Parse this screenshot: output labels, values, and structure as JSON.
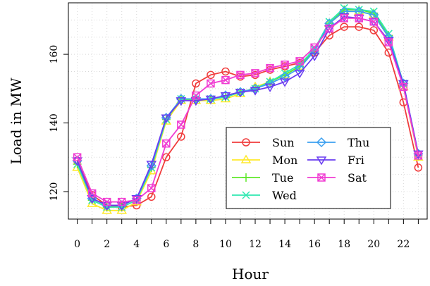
{
  "chart_data": {
    "type": "line",
    "title": "",
    "xlabel": "Hour",
    "ylabel": "Load in MW",
    "x": [
      0,
      1,
      2,
      3,
      4,
      5,
      6,
      7,
      8,
      9,
      10,
      11,
      12,
      13,
      14,
      15,
      16,
      17,
      18,
      19,
      20,
      21,
      22,
      23
    ],
    "x_ticks": [
      0,
      2,
      4,
      6,
      8,
      10,
      12,
      14,
      16,
      18,
      20,
      22
    ],
    "y_ticks": [
      120,
      140,
      160
    ],
    "xlim": [
      -0.6,
      23.6
    ],
    "ylim": [
      112,
      175
    ],
    "grid": true,
    "legend_position": "bottom-right",
    "series": [
      {
        "name": "Sun",
        "color": "#f03c3c",
        "marker": "circle",
        "values": [
          129,
          119,
          116,
          115.5,
          116,
          118.5,
          130,
          136,
          151.5,
          154,
          155,
          153.5,
          154,
          155.5,
          156.5,
          157.5,
          160.5,
          165.5,
          168,
          168,
          167,
          160.5,
          146,
          127
        ]
      },
      {
        "name": "Mon",
        "color": "#ffe92a",
        "marker": "triangle-up",
        "values": [
          127,
          116.5,
          114.5,
          114.5,
          117,
          126,
          140.5,
          146.5,
          146.5,
          146.5,
          147,
          148.5,
          150.5,
          152,
          154,
          156.5,
          161,
          169,
          172.5,
          172.5,
          171.5,
          165,
          150.5,
          130
        ]
      },
      {
        "name": "Tue",
        "color": "#5fe82a",
        "marker": "plus",
        "values": [
          128,
          117.5,
          115.5,
          115.5,
          117.5,
          127,
          141,
          147,
          146.5,
          147,
          147.5,
          149,
          150,
          152,
          154,
          156.5,
          161,
          169,
          173,
          173,
          172,
          165.5,
          151,
          130.5
        ]
      },
      {
        "name": "Wed",
        "color": "#2ee8b0",
        "marker": "x",
        "values": [
          128,
          117.5,
          115.5,
          115.5,
          117.5,
          127,
          141,
          147,
          147,
          147,
          147.5,
          149,
          150,
          152,
          154.5,
          157,
          161.5,
          169.5,
          173.5,
          173,
          172.5,
          166,
          151.5,
          130.5
        ]
      },
      {
        "name": "Thu",
        "color": "#3ca0f0",
        "marker": "diamond",
        "values": [
          129,
          118,
          116,
          116,
          118,
          127.5,
          141.5,
          147,
          147,
          147,
          148,
          149,
          150,
          151.5,
          153.5,
          156,
          161,
          169,
          172.5,
          172.5,
          171.5,
          165,
          151.5,
          131
        ]
      },
      {
        "name": "Fri",
        "color": "#6a3cf0",
        "marker": "triangle-down",
        "values": [
          129,
          118,
          116,
          116,
          118,
          128,
          141.5,
          146.5,
          146.5,
          147,
          148,
          149,
          149.5,
          150.5,
          152,
          154.5,
          159.5,
          167.5,
          171,
          170.5,
          169.5,
          164,
          151.5,
          131
        ]
      },
      {
        "name": "Sat",
        "color": "#f03cd2",
        "marker": "square-x",
        "values": [
          130,
          119.5,
          117,
          117,
          117.5,
          121,
          134,
          139.5,
          148,
          151.5,
          152.5,
          154,
          154.5,
          156,
          157,
          158,
          162,
          167.5,
          170.5,
          170.5,
          169.5,
          163.5,
          150.5,
          130.5
        ]
      }
    ]
  }
}
